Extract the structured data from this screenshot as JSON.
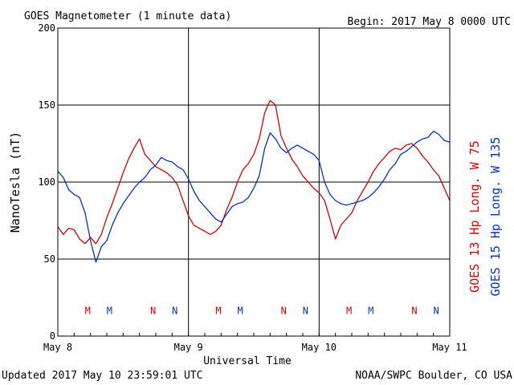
{
  "header": {
    "title": "GOES Magnetometer (1 minute data)",
    "begin": "Begin:  2017 May 8 0000 UTC"
  },
  "footer": {
    "updated": "Updated 2017 May 10 23:59:01 UTC",
    "credit": "NOAA/SWPC Boulder, CO USA"
  },
  "colors": {
    "goes13": "#dd0000",
    "goes15": "#0033cc",
    "grid": "#000000"
  },
  "chart_data": {
    "type": "line",
    "xlabel": "Universal Time",
    "ylabel": "NanoTesla (nT)",
    "ylim": [
      0,
      200
    ],
    "xlim_hours": [
      0,
      72
    ],
    "grid": true,
    "yticks": [
      0,
      50,
      100,
      150,
      200
    ],
    "xticks": [
      {
        "hour": 0,
        "label": "May 8"
      },
      {
        "hour": 24,
        "label": "May 9"
      },
      {
        "hour": 48,
        "label": "May 10"
      },
      {
        "hour": 72,
        "label": "May 11"
      }
    ],
    "legend_placement": "right",
    "series": [
      {
        "name": "GOES 13 Hp  Long. W 75",
        "color": "#dd0000",
        "points": [
          [
            0,
            71
          ],
          [
            1,
            66
          ],
          [
            2,
            70
          ],
          [
            3,
            69
          ],
          [
            4,
            63
          ],
          [
            5,
            60
          ],
          [
            6,
            64
          ],
          [
            7,
            60
          ],
          [
            8,
            66
          ],
          [
            9,
            77
          ],
          [
            10,
            86
          ],
          [
            11,
            96
          ],
          [
            12,
            106
          ],
          [
            13,
            115
          ],
          [
            14,
            122
          ],
          [
            15,
            128
          ],
          [
            16,
            118
          ],
          [
            17,
            114
          ],
          [
            18,
            110
          ],
          [
            19,
            108
          ],
          [
            20,
            106
          ],
          [
            21,
            103
          ],
          [
            22,
            98
          ],
          [
            23,
            88
          ],
          [
            24,
            78
          ],
          [
            25,
            72
          ],
          [
            26,
            70
          ],
          [
            27,
            68
          ],
          [
            28,
            66
          ],
          [
            29,
            68
          ],
          [
            30,
            72
          ],
          [
            31,
            82
          ],
          [
            32,
            90
          ],
          [
            33,
            100
          ],
          [
            34,
            108
          ],
          [
            35,
            112
          ],
          [
            36,
            118
          ],
          [
            37,
            128
          ],
          [
            38,
            145
          ],
          [
            39,
            153
          ],
          [
            40,
            150
          ],
          [
            41,
            130
          ],
          [
            42,
            122
          ],
          [
            43,
            115
          ],
          [
            44,
            110
          ],
          [
            45,
            104
          ],
          [
            46,
            100
          ],
          [
            47,
            96
          ],
          [
            48,
            93
          ],
          [
            49,
            88
          ],
          [
            50,
            76
          ],
          [
            51,
            63
          ],
          [
            52,
            72
          ],
          [
            53,
            76
          ],
          [
            54,
            80
          ],
          [
            55,
            88
          ],
          [
            56,
            94
          ],
          [
            57,
            100
          ],
          [
            58,
            107
          ],
          [
            59,
            112
          ],
          [
            60,
            116
          ],
          [
            61,
            120
          ],
          [
            62,
            122
          ],
          [
            63,
            121
          ],
          [
            64,
            124
          ],
          [
            65,
            125
          ],
          [
            66,
            122
          ],
          [
            67,
            117
          ],
          [
            68,
            113
          ],
          [
            69,
            108
          ],
          [
            70,
            104
          ],
          [
            71,
            96
          ],
          [
            72,
            88
          ]
        ]
      },
      {
        "name": "GOES 15 Hp  Long. W 135",
        "color": "#0033cc",
        "points": [
          [
            0,
            107
          ],
          [
            1,
            103
          ],
          [
            2,
            95
          ],
          [
            3,
            92
          ],
          [
            4,
            90
          ],
          [
            5,
            80
          ],
          [
            6,
            62
          ],
          [
            7,
            48
          ],
          [
            8,
            58
          ],
          [
            9,
            62
          ],
          [
            10,
            72
          ],
          [
            11,
            80
          ],
          [
            12,
            86
          ],
          [
            13,
            91
          ],
          [
            14,
            96
          ],
          [
            15,
            100
          ],
          [
            16,
            103
          ],
          [
            17,
            108
          ],
          [
            18,
            111
          ],
          [
            19,
            116
          ],
          [
            20,
            114
          ],
          [
            21,
            113
          ],
          [
            22,
            110
          ],
          [
            23,
            108
          ],
          [
            24,
            102
          ],
          [
            25,
            94
          ],
          [
            26,
            88
          ],
          [
            27,
            84
          ],
          [
            28,
            80
          ],
          [
            29,
            76
          ],
          [
            30,
            74
          ],
          [
            31,
            79
          ],
          [
            32,
            84
          ],
          [
            33,
            86
          ],
          [
            34,
            87
          ],
          [
            35,
            90
          ],
          [
            36,
            96
          ],
          [
            37,
            104
          ],
          [
            38,
            122
          ],
          [
            39,
            132
          ],
          [
            40,
            128
          ],
          [
            41,
            122
          ],
          [
            42,
            119
          ],
          [
            43,
            122
          ],
          [
            44,
            124
          ],
          [
            45,
            122
          ],
          [
            46,
            120
          ],
          [
            47,
            118
          ],
          [
            48,
            114
          ],
          [
            49,
            100
          ],
          [
            50,
            92
          ],
          [
            51,
            88
          ],
          [
            52,
            86
          ],
          [
            53,
            85
          ],
          [
            54,
            86
          ],
          [
            55,
            87
          ],
          [
            56,
            88
          ],
          [
            57,
            90
          ],
          [
            58,
            93
          ],
          [
            59,
            97
          ],
          [
            60,
            102
          ],
          [
            61,
            108
          ],
          [
            62,
            112
          ],
          [
            63,
            118
          ],
          [
            64,
            120
          ],
          [
            65,
            123
          ],
          [
            66,
            126
          ],
          [
            67,
            128
          ],
          [
            68,
            129
          ],
          [
            69,
            133
          ],
          [
            70,
            131
          ],
          [
            71,
            127
          ],
          [
            72,
            126
          ]
        ]
      }
    ],
    "annotations": [
      {
        "text": "M",
        "hour": 5.5,
        "color": "#dd0000"
      },
      {
        "text": "M",
        "hour": 9.5,
        "color": "#0033cc"
      },
      {
        "text": "N",
        "hour": 17.5,
        "color": "#dd0000"
      },
      {
        "text": "N",
        "hour": 21.5,
        "color": "#0033cc"
      },
      {
        "text": "M",
        "hour": 29.5,
        "color": "#dd0000"
      },
      {
        "text": "M",
        "hour": 33.5,
        "color": "#0033cc"
      },
      {
        "text": "N",
        "hour": 41.5,
        "color": "#dd0000"
      },
      {
        "text": "N",
        "hour": 45.5,
        "color": "#0033cc"
      },
      {
        "text": "M",
        "hour": 53.5,
        "color": "#dd0000"
      },
      {
        "text": "M",
        "hour": 57.5,
        "color": "#0033cc"
      },
      {
        "text": "N",
        "hour": 65.5,
        "color": "#dd0000"
      },
      {
        "text": "N",
        "hour": 69.5,
        "color": "#0033cc"
      }
    ],
    "annotation_level": 17
  }
}
